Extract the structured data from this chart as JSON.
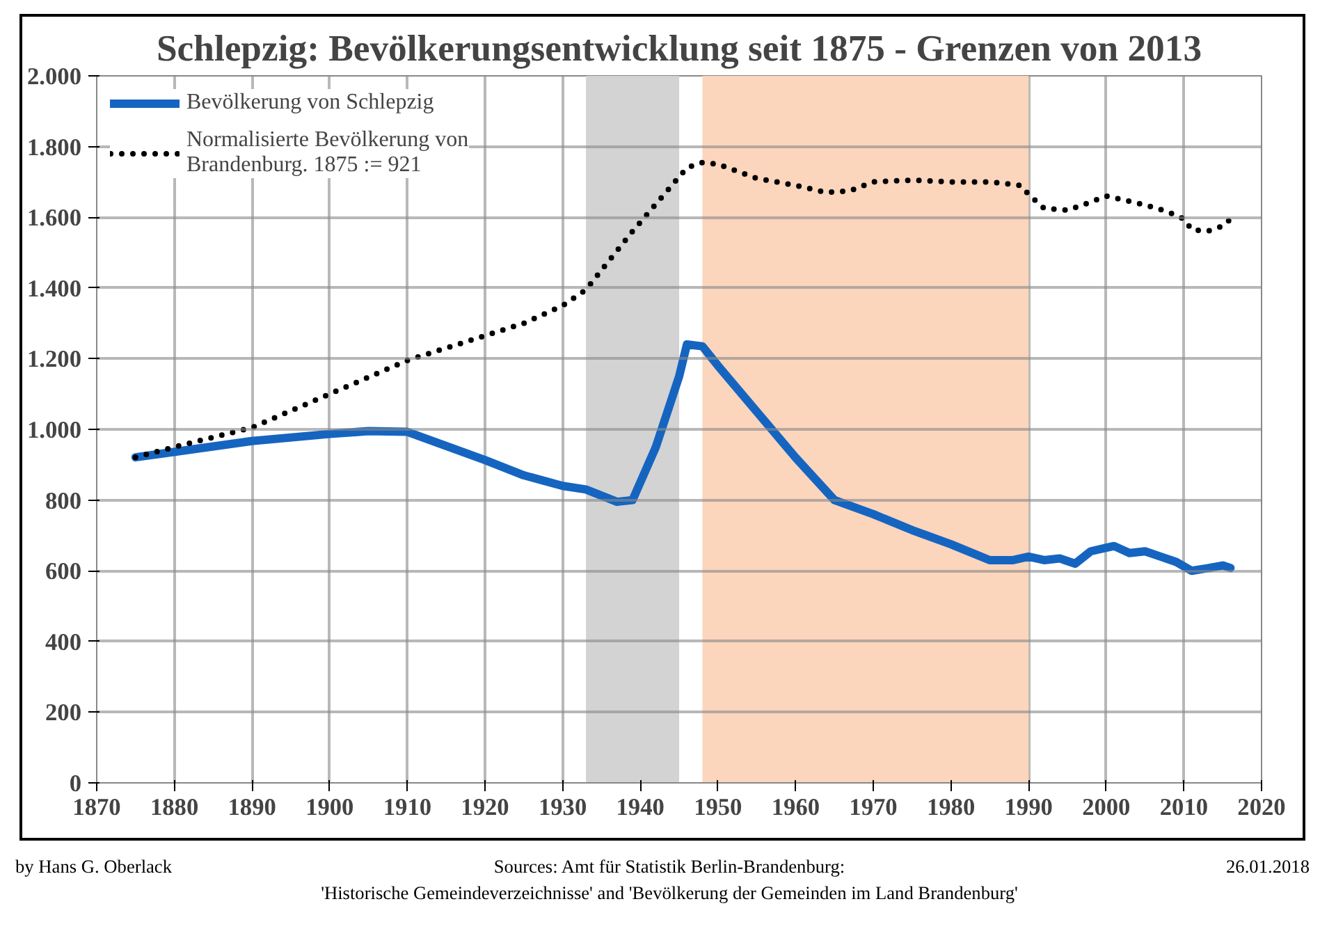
{
  "chart_data": {
    "type": "line",
    "title": "Schlepzig: Bevölkerungsentwicklung seit 1875 - Grenzen von 2013",
    "xlim": [
      1870,
      2020
    ],
    "xticks": [
      1870,
      1880,
      1890,
      1900,
      1910,
      1920,
      1930,
      1940,
      1950,
      1960,
      1970,
      1980,
      1990,
      2000,
      2010,
      2020
    ],
    "ylim": [
      0,
      2000
    ],
    "yticks": [
      0,
      200,
      400,
      600,
      800,
      {
        "value": 1000,
        "label": "1.000"
      },
      {
        "value": 1200,
        "label": "1.200"
      },
      {
        "value": 1400,
        "label": "1.400"
      },
      {
        "value": 1600,
        "label": "1.600"
      },
      {
        "value": 1800,
        "label": "1.800"
      },
      {
        "value": 2000,
        "label": "2.000"
      }
    ],
    "grid": true,
    "legend": "top left",
    "marker": "none",
    "bands": [
      {
        "axis": "x",
        "from": 1933,
        "to": 1945,
        "color": "#d3d3d3"
      },
      {
        "axis": "x",
        "from": 1948,
        "to": 1990,
        "color": "#fbd5bc"
      }
    ],
    "series": [
      {
        "name": "Bevölkerung von Schlepzig",
        "color": "#1565c0",
        "line_style": "solid",
        "x": [
          1875,
          1890,
          1900,
          1905,
          1910,
          1920,
          1925,
          1930,
          1933,
          1937,
          1939,
          1942,
          1945,
          1946,
          1948,
          1950,
          1955,
          1960,
          1965,
          1970,
          1975,
          1980,
          1985,
          1988,
          1990,
          1992,
          1994,
          1996,
          1998,
          2000,
          2001,
          2003,
          2005,
          2007,
          2009,
          2011,
          2013,
          2015,
          2016
        ],
        "values": [
          921,
          967,
          987,
          995,
          993,
          913,
          870,
          840,
          830,
          795,
          800,
          950,
          1150,
          1240,
          1235,
          1180,
          1050,
          920,
          800,
          760,
          715,
          675,
          630,
          630,
          640,
          630,
          635,
          620,
          655,
          665,
          670,
          650,
          655,
          640,
          625,
          600,
          607,
          615,
          608
        ]
      },
      {
        "name": "Normalisierte Bevölkerung von\nBrandenburg. 1875 := 921",
        "color": "#000000",
        "line_style": "dotted",
        "x": [
          1875,
          1880,
          1890,
          1900,
          1910,
          1920,
          1925,
          1930,
          1933,
          1939,
          1946,
          1948,
          1950,
          1955,
          1960,
          1964,
          1967,
          1970,
          1975,
          1980,
          1985,
          1989,
          1990,
          1992,
          1995,
          1997,
          2000,
          2003,
          2005,
          2008,
          2010,
          2011,
          2013,
          2015,
          2016
        ],
        "values": [
          921,
          950,
          1005,
          1100,
          1195,
          1265,
          1300,
          1350,
          1395,
          1560,
          1740,
          1755,
          1750,
          1710,
          1690,
          1670,
          1675,
          1700,
          1705,
          1700,
          1700,
          1690,
          1665,
          1625,
          1620,
          1635,
          1660,
          1645,
          1635,
          1615,
          1595,
          1565,
          1560,
          1575,
          1595
        ]
      }
    ],
    "annotations": [
      "by Hans G. Oberlack",
      "Sources: Amt für Statistik Berlin-Brandenburg:\n'Historische Gemeindeverzeichnisse' and 'Bevölkerung der Gemeinden im Land Brandenburg'",
      "26.01.2018"
    ]
  }
}
